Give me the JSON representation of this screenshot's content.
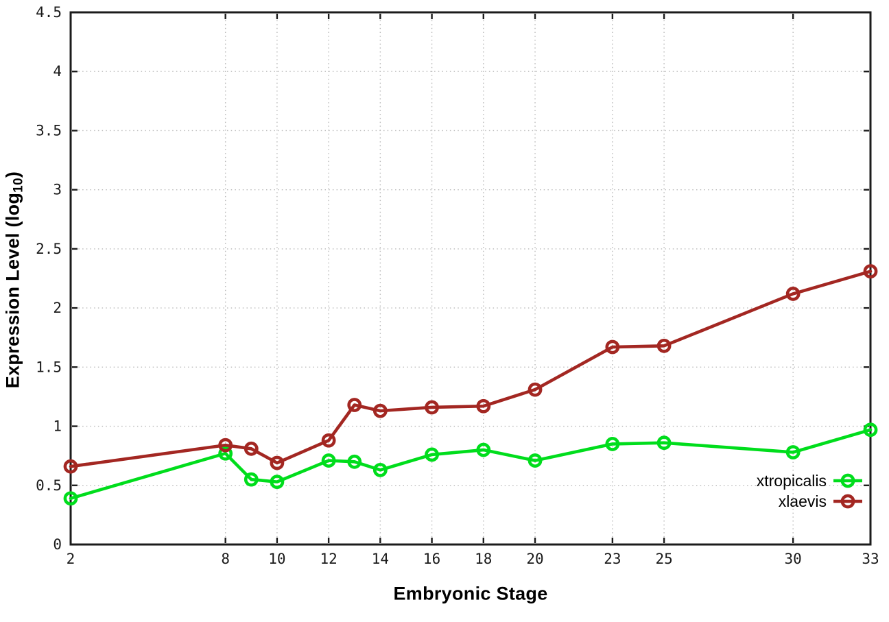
{
  "chart_data": {
    "type": "line",
    "title": "",
    "xlabel": "Embryonic Stage",
    "ylabel": "Expression Level (log₁₀)",
    "ylabel_parts": {
      "prefix": "Expression Level (log",
      "sub": "10",
      "suffix": ")"
    },
    "xlim": [
      2,
      33
    ],
    "ylim": [
      0,
      4.5
    ],
    "grid": "dotted",
    "x_ticks": [
      2,
      8,
      10,
      12,
      14,
      16,
      18,
      20,
      23,
      25,
      30,
      33
    ],
    "y_ticks": [
      0,
      0.5,
      1,
      1.5,
      2,
      2.5,
      3,
      3.5,
      4,
      4.5
    ],
    "y_tick_labels": [
      "0",
      "0.5",
      "1",
      "1.5",
      "2",
      "2.5",
      "3",
      "3.5",
      "4",
      "4.5"
    ],
    "x": [
      2,
      8,
      9,
      10,
      12,
      13,
      14,
      16,
      18,
      20,
      23,
      25,
      30,
      33
    ],
    "series": [
      {
        "name": "xtropicalis",
        "color": "#00dd1c",
        "marker": "open-circle",
        "values": [
          0.39,
          0.77,
          0.55,
          0.53,
          0.71,
          0.7,
          0.63,
          0.76,
          0.8,
          0.71,
          0.85,
          0.86,
          0.78,
          0.97
        ]
      },
      {
        "name": "xlaevis",
        "color": "#a32722",
        "marker": "open-circle",
        "values": [
          0.66,
          0.84,
          0.81,
          0.69,
          0.88,
          1.18,
          1.13,
          1.16,
          1.17,
          1.31,
          1.67,
          1.68,
          2.12,
          2.31
        ]
      }
    ],
    "legend_position": "inside-bottom-right",
    "axis_color": "#1b1b1b",
    "grid_color": "#b9b9b9",
    "tick_label_color": "#1a1a1a",
    "background": "#ffffff"
  }
}
